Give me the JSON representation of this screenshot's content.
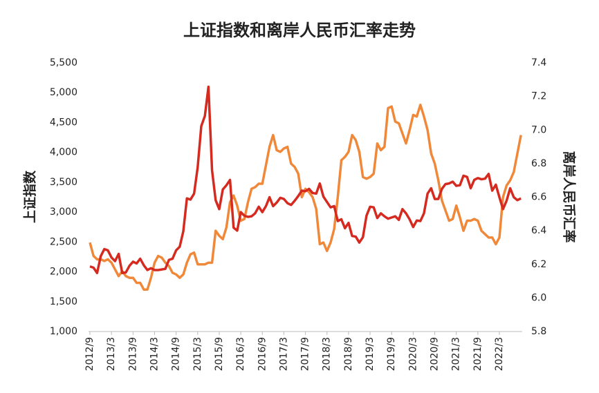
{
  "chart_data": {
    "type": "line",
    "title": "上证指数和离岸人民币汇率走势",
    "y_label": "上证指数",
    "y2_label": "离岸人民币汇率",
    "categories": [
      "2012/9",
      null,
      null,
      null,
      null,
      null,
      "2013/3",
      null,
      null,
      null,
      null,
      null,
      "2013/9",
      null,
      null,
      null,
      null,
      null,
      "2014/3",
      null,
      null,
      null,
      null,
      null,
      "2014/9",
      null,
      null,
      null,
      null,
      null,
      "2015/3",
      null,
      null,
      null,
      null,
      null,
      "2015/9",
      null,
      null,
      null,
      null,
      null,
      "2016/3",
      null,
      null,
      null,
      null,
      null,
      "2016/9",
      null,
      null,
      null,
      null,
      null,
      "2017/3",
      null,
      null,
      null,
      null,
      null,
      "2017/9",
      null,
      null,
      null,
      null,
      null,
      "2018/3",
      null,
      null,
      null,
      null,
      null,
      "2018/9",
      null,
      null,
      null,
      null,
      null,
      "2019/3",
      null,
      null,
      null,
      null,
      null,
      "2019/9",
      null,
      null,
      null,
      null,
      null,
      "2020/3",
      null,
      null,
      null,
      null,
      null,
      "2020/9",
      null,
      null,
      null,
      null,
      null,
      "2021/3",
      null,
      null,
      null,
      null,
      null,
      "2021/9",
      null,
      null,
      null,
      null,
      null,
      "2022/3",
      null,
      null,
      null,
      null,
      null,
      null
    ],
    "series": [
      {
        "color": "#d42a20",
        "axis": "y",
        "values": [
          2090,
          2070,
          1980,
          2260,
          2380,
          2360,
          2240,
          2180,
          2300,
          1980,
          1990,
          2100,
          2170,
          2140,
          2220,
          2110,
          2030,
          2060,
          2030,
          2030,
          2040,
          2050,
          2200,
          2220,
          2360,
          2420,
          2680,
          3230,
          3210,
          3310,
          3750,
          4440,
          4610,
          5100,
          3700,
          3200,
          3050,
          3380,
          3450,
          3540,
          2740,
          2690,
          3000,
          2940,
          2920,
          2930,
          2980,
          3090,
          3000,
          3100,
          3250,
          3100,
          3160,
          3240,
          3220,
          3150,
          3120,
          3190,
          3270,
          3360,
          3350,
          3390,
          3320,
          3310,
          3480,
          3260,
          3170,
          3080,
          3100,
          2850,
          2880,
          2730,
          2820,
          2600,
          2590,
          2490,
          2580,
          2940,
          3090,
          3080,
          2900,
          2980,
          2930,
          2890,
          2910,
          2930,
          2870,
          3050,
          2980,
          2880,
          2750,
          2860,
          2850,
          2980,
          3310,
          3400,
          3220,
          3220,
          3390,
          3470,
          3480,
          3510,
          3440,
          3450,
          3610,
          3590,
          3400,
          3540,
          3570,
          3550,
          3560,
          3640,
          3360,
          3460,
          3250,
          3050,
          3190,
          3400,
          3250,
          3200,
          3230
        ]
      },
      {
        "color": "#f0883a",
        "axis": "y2",
        "values": [
          6.33,
          6.25,
          6.23,
          6.23,
          6.22,
          6.23,
          6.21,
          6.17,
          6.13,
          6.16,
          6.13,
          6.12,
          6.12,
          6.09,
          6.09,
          6.05,
          6.05,
          6.12,
          6.21,
          6.25,
          6.24,
          6.21,
          6.19,
          6.15,
          6.14,
          6.12,
          6.14,
          6.21,
          6.26,
          6.27,
          6.2,
          6.2,
          6.2,
          6.21,
          6.21,
          6.4,
          6.37,
          6.35,
          6.42,
          6.57,
          6.61,
          6.55,
          6.46,
          6.47,
          6.57,
          6.65,
          6.66,
          6.68,
          6.68,
          6.79,
          6.9,
          6.97,
          6.88,
          6.87,
          6.89,
          6.9,
          6.8,
          6.78,
          6.74,
          6.6,
          6.65,
          6.63,
          6.6,
          6.53,
          6.32,
          6.33,
          6.28,
          6.33,
          6.41,
          6.6,
          6.82,
          6.84,
          6.87,
          6.97,
          6.94,
          6.87,
          6.72,
          6.71,
          6.72,
          6.74,
          6.92,
          6.88,
          6.9,
          7.13,
          7.14,
          7.05,
          7.04,
          6.98,
          6.92,
          7.0,
          7.09,
          7.08,
          7.15,
          7.08,
          7.0,
          6.86,
          6.8,
          6.7,
          6.58,
          6.52,
          6.46,
          6.47,
          6.55,
          6.48,
          6.4,
          6.46,
          6.46,
          6.47,
          6.46,
          6.4,
          6.38,
          6.36,
          6.36,
          6.32,
          6.36,
          6.6,
          6.67,
          6.7,
          6.75,
          6.86,
          6.97
        ]
      }
    ],
    "ylim": [
      1000,
      5500
    ],
    "yticks": [
      {
        "value": 1000,
        "label": "1,000"
      },
      {
        "value": 1500,
        "label": "1,500"
      },
      {
        "value": 2000,
        "label": "2,000"
      },
      {
        "value": 2500,
        "label": "2,500"
      },
      {
        "value": 3000,
        "label": "3,000"
      },
      {
        "value": 3500,
        "label": "3,500"
      },
      {
        "value": 4000,
        "label": "4,000"
      },
      {
        "value": 4500,
        "label": "4,500"
      },
      {
        "value": 5000,
        "label": "5,000"
      },
      {
        "value": 5500,
        "label": "5,500"
      }
    ],
    "y2lim": [
      5.8,
      7.4
    ],
    "y2ticks": [
      5.8,
      {
        "value": 6.0,
        "label": "6.0"
      },
      6.2,
      6.4,
      6.6,
      6.8,
      {
        "value": 7.0,
        "label": "7.0"
      },
      7.2,
      7.4
    ],
    "grid": false
  }
}
